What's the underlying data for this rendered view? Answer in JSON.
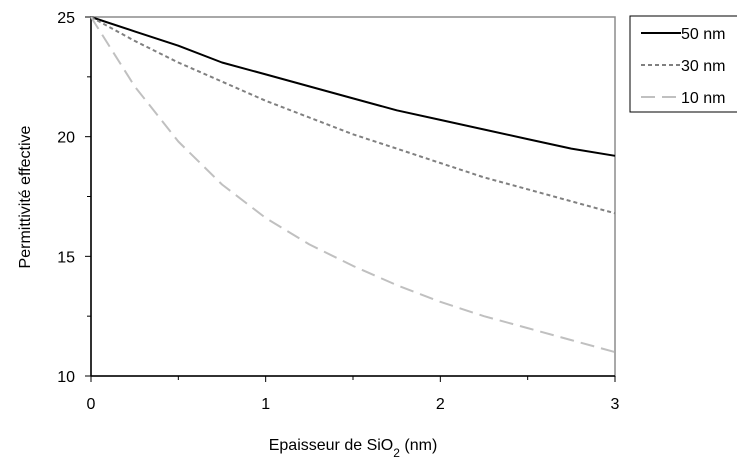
{
  "chart_data": {
    "type": "line",
    "xlabel": "Epaisseur de SiO",
    "xlabel_sub": "2",
    "xlabel_tail": " (nm)",
    "ylabel": "Permittivité effective",
    "xlim": [
      0,
      3
    ],
    "ylim": [
      10,
      25
    ],
    "x_ticks": [
      0,
      1,
      2,
      3
    ],
    "y_ticks": [
      10,
      15,
      20,
      25
    ],
    "grid": false,
    "legend_position": "top-right",
    "x": [
      0,
      0.25,
      0.5,
      0.75,
      1,
      1.25,
      1.5,
      1.75,
      2,
      2.25,
      2.5,
      2.75,
      3
    ],
    "series": [
      {
        "name": "50 nm",
        "style": "solid",
        "color": "#000000",
        "values": [
          25.0,
          24.4,
          23.8,
          23.1,
          22.6,
          22.1,
          21.6,
          21.1,
          20.7,
          20.3,
          19.9,
          19.5,
          19.2
        ]
      },
      {
        "name": "30 nm",
        "style": "dotted",
        "color": "#808080",
        "values": [
          25.0,
          24.0,
          23.1,
          22.3,
          21.5,
          20.8,
          20.1,
          19.5,
          18.9,
          18.3,
          17.8,
          17.3,
          16.8
        ]
      },
      {
        "name": "10 nm",
        "style": "long-dash",
        "color": "#c0c0c0",
        "values": [
          25.0,
          22.1,
          19.8,
          18.0,
          16.6,
          15.5,
          14.6,
          13.8,
          13.1,
          12.5,
          12.0,
          11.5,
          11.0
        ]
      }
    ]
  }
}
